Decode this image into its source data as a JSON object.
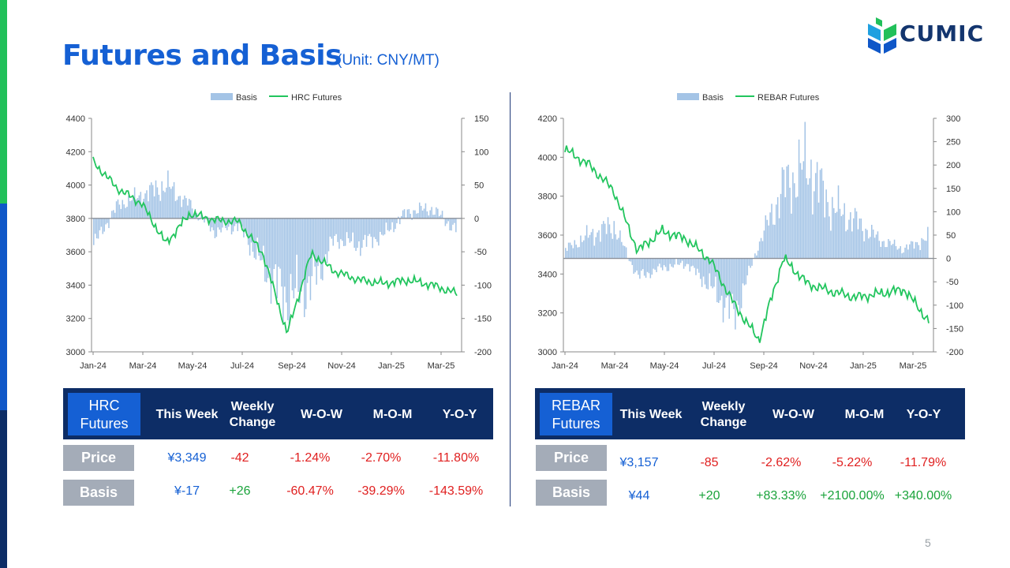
{
  "page": {
    "title": "Futures and Basis",
    "unit": "(Unit: CNY/MT)",
    "logo_text": "CUMIC",
    "page_number": "5"
  },
  "colors": {
    "basis": "#a4c4e6",
    "futures_line": "#22c55e",
    "title": "#1560d4",
    "navy": "#0d2d66",
    "red": "#e02020",
    "green": "#1aa33b"
  },
  "tables": {
    "hrc": {
      "name_line1": "HRC",
      "name_line2": "Futures",
      "headers": {
        "this_week": "This Week",
        "weekly_1": "Weekly",
        "weekly_2": "Change",
        "wow": "W-O-W",
        "mom": "M-O-M",
        "yoy": "Y-O-Y"
      },
      "price": {
        "label": "Price",
        "this_week": "¥3,349",
        "weekly_change": "-42",
        "wow": "-1.24%",
        "mom": "-2.70%",
        "yoy": "-11.80%"
      },
      "basis": {
        "label": "Basis",
        "this_week": "¥-17",
        "weekly_change": "+26",
        "wow": "-60.47%",
        "mom": "-39.29%",
        "yoy": "-143.59%"
      }
    },
    "rebar": {
      "name_line1": "REBAR",
      "name_line2": "Futures",
      "headers": {
        "this_week": "This Week",
        "weekly_1": "Weekly",
        "weekly_2": "Change",
        "wow": "W-O-W",
        "mom": "M-O-M",
        "yoy": "Y-O-Y"
      },
      "price": {
        "label": "Price",
        "this_week": "¥3,157",
        "weekly_change": "-85",
        "wow": "-2.62%",
        "mom": "-5.22%",
        "yoy": "-11.79%"
      },
      "basis": {
        "label": "Basis",
        "this_week": "¥44",
        "weekly_change": "+20",
        "wow": "+83.33%",
        "mom": "+2100.00%",
        "yoy": "+340.00%"
      }
    }
  },
  "chart_data": [
    {
      "type": "bar+line",
      "legend": [
        "Basis",
        "HRC Futures"
      ],
      "legend_position": "top",
      "x_tick_labels": [
        "Jan-24",
        "Mar-24",
        "May-24",
        "Jul-24",
        "Sep-24",
        "Nov-24",
        "Jan-25",
        "Mar-25"
      ],
      "y_left": {
        "range": [
          3000,
          4400
        ],
        "ticks": [
          3000,
          3200,
          3400,
          3600,
          3800,
          4000,
          4200,
          4400
        ]
      },
      "y_right": {
        "range": [
          -200,
          150
        ],
        "ticks": [
          -200,
          -150,
          -100,
          -50,
          0,
          50,
          100,
          150
        ]
      },
      "series": [
        {
          "name": "HRC Futures",
          "axis": "left",
          "type": "line",
          "x": [
            "Jan-24",
            "Feb-24",
            "Mar-24",
            "Apr-24",
            "May-24",
            "Jun-24",
            "Jul-24",
            "Aug-24",
            "Sep-24",
            "Oct-24",
            "Nov-24",
            "Dec-24",
            "Jan-25",
            "Feb-25",
            "Mar-25",
            "Apr-25"
          ],
          "values": [
            4140,
            3980,
            3890,
            3650,
            3830,
            3790,
            3780,
            3590,
            3110,
            3590,
            3480,
            3430,
            3410,
            3430,
            3400,
            3349
          ]
        },
        {
          "name": "Basis",
          "axis": "right",
          "type": "bar",
          "x": [
            "Jan-24",
            "Feb-24",
            "Mar-24",
            "Apr-24",
            "May-24",
            "Jun-24",
            "Jul-24",
            "Aug-24",
            "Sep-24",
            "Oct-24",
            "Nov-24",
            "Dec-24",
            "Jan-25",
            "Feb-25",
            "Mar-25",
            "Apr-25"
          ],
          "values": [
            -40,
            20,
            35,
            50,
            20,
            -20,
            -10,
            -70,
            -120,
            -100,
            -30,
            -40,
            -25,
            10,
            15,
            -17
          ]
        }
      ]
    },
    {
      "type": "bar+line",
      "legend": [
        "Basis",
        "REBAR Futures"
      ],
      "legend_position": "top",
      "x_tick_labels": [
        "Jan-24",
        "Mar-24",
        "May-24",
        "Jul-24",
        "Sep-24",
        "Nov-24",
        "Jan-25",
        "Mar-25"
      ],
      "y_left": {
        "range": [
          3000,
          4200
        ],
        "ticks": [
          3000,
          3200,
          3400,
          3600,
          3800,
          4000,
          4200
        ]
      },
      "y_right": {
        "range": [
          -200,
          300
        ],
        "ticks": [
          -200,
          -150,
          -100,
          -50,
          0,
          50,
          100,
          150,
          200,
          250,
          300
        ]
      },
      "series": [
        {
          "name": "REBAR Futures",
          "axis": "left",
          "type": "line",
          "x": [
            "Jan-24",
            "Feb-24",
            "Mar-24",
            "Apr-24",
            "May-24",
            "Jun-24",
            "Jul-24",
            "Aug-24",
            "Sep-24",
            "Oct-24",
            "Nov-24",
            "Dec-24",
            "Jan-25",
            "Feb-25",
            "Mar-25",
            "Apr-25"
          ],
          "values": [
            4040,
            3960,
            3830,
            3520,
            3620,
            3580,
            3470,
            3240,
            3060,
            3480,
            3350,
            3310,
            3280,
            3300,
            3320,
            3157
          ]
        },
        {
          "name": "Basis",
          "axis": "right",
          "type": "bar",
          "x": [
            "Jan-24",
            "Feb-24",
            "Mar-24",
            "Apr-24",
            "May-24",
            "Jun-24",
            "Jul-24",
            "Aug-24",
            "Sep-24",
            "Oct-24",
            "Nov-24",
            "Dec-24",
            "Jan-25",
            "Feb-25",
            "Mar-25",
            "Apr-25"
          ],
          "values": [
            20,
            50,
            70,
            -40,
            -20,
            -10,
            -60,
            -120,
            30,
            150,
            200,
            110,
            80,
            40,
            20,
            44
          ]
        }
      ]
    }
  ]
}
